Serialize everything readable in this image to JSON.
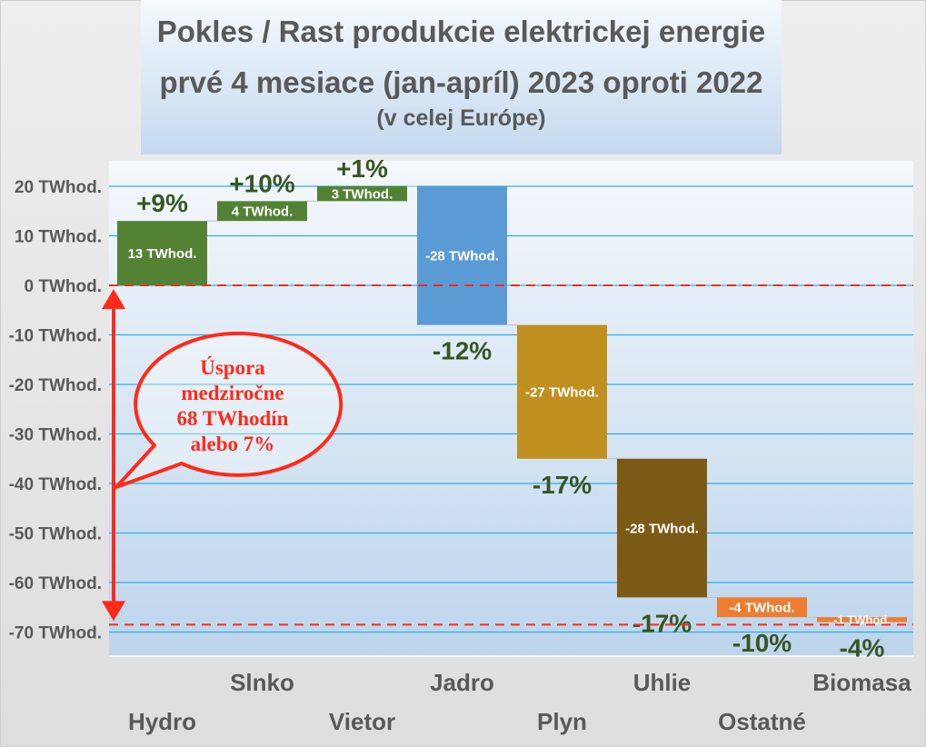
{
  "chart_data": {
    "type": "waterfall",
    "title": [
      "Pokles / Rast produkcie elektrickej energie",
      "prvé 4 mesiace (jan-apríl) 2023 oproti 2022"
    ],
    "subtitle": "(v celej Európe)",
    "yticks": [
      20,
      10,
      0,
      -10,
      -20,
      -30,
      -40,
      -50,
      -60,
      -70
    ],
    "ytick_suffix": " TWhod.",
    "ylim": [
      -75,
      25
    ],
    "grid": true,
    "categories": [
      "Hydro",
      "Slnko",
      "Vietor",
      "Jadro",
      "Plyn",
      "Uhlie",
      "Ostatné",
      "Biomasa"
    ],
    "values": [
      13,
      4,
      3,
      -28,
      -27,
      -28,
      -4,
      -1
    ],
    "value_labels": [
      "13 TWhod.",
      "4 TWhod.",
      "3 TWhod.",
      "-28 TWhod.",
      "-27 TWhod.",
      "-28 TWhod.",
      "-4 TWhod.",
      "-1 TWhod."
    ],
    "percent_labels": [
      "+9%",
      "+10%",
      "+1%",
      "-12%",
      "-17%",
      "-17%",
      "-10%",
      "-4%"
    ],
    "colors": [
      "#548235",
      "#548235",
      "#548235",
      "#5b9bd5",
      "#bf9020",
      "#7a5a14",
      "#ed7d31",
      "#ed7d31"
    ],
    "reference_lines": [
      0,
      -68.5
    ],
    "annotation": [
      "Úspora",
      "medziročne",
      "68 TWhodín",
      "alebo 7%"
    ],
    "annotation_color": "#ff2a1a",
    "percent_color": "#375623"
  }
}
